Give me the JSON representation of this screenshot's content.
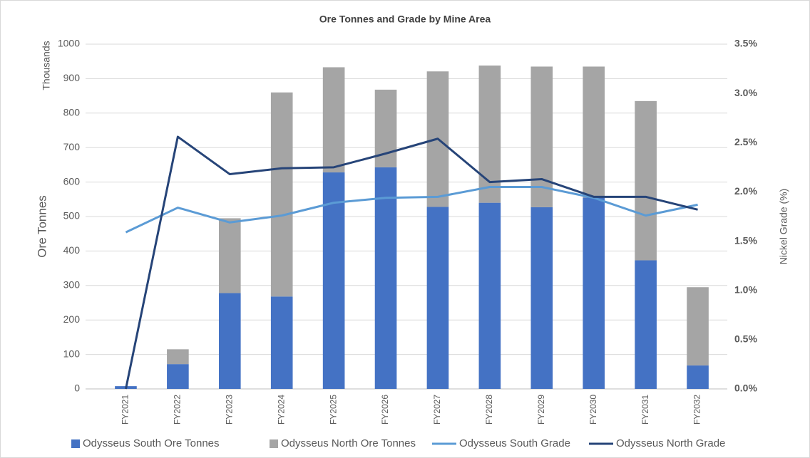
{
  "chart_data": {
    "type": "bar-line",
    "title": "Ore Tonnes and Grade by Mine Area",
    "y_unit": "Thousands",
    "y_label": "Ore Tonnes",
    "y2_label": "Nickel Grade (%)",
    "categories": [
      "FY2021",
      "FY2022",
      "FY2023",
      "FY2024",
      "FY2025",
      "FY2026",
      "FY2027",
      "FY2028",
      "FY2029",
      "FY2030",
      "FY2031",
      "FY2032"
    ],
    "series": [
      {
        "name": "Odysseus South Ore Tonnes",
        "kind": "bar",
        "color": "#4472c4",
        "values": [
          8,
          72,
          278,
          268,
          628,
          643,
          528,
          540,
          527,
          555,
          373,
          68
        ]
      },
      {
        "name": "Odysseus North Ore Tonnes",
        "kind": "bar",
        "color": "#a5a5a5",
        "values": [
          0,
          43,
          217,
          592,
          305,
          225,
          393,
          398,
          408,
          380,
          462,
          227
        ]
      },
      {
        "name": "Odysseus South Grade",
        "kind": "line",
        "axis": "y2",
        "color": "#5b9bd5",
        "values": [
          1.59,
          1.84,
          1.69,
          1.76,
          1.89,
          1.94,
          1.95,
          2.05,
          2.05,
          1.94,
          1.76,
          1.87
        ]
      },
      {
        "name": "Odysseus North Grade",
        "kind": "line",
        "axis": "y2",
        "color": "#264478",
        "values": [
          0,
          2.56,
          2.18,
          2.24,
          2.25,
          2.39,
          2.54,
          2.1,
          2.13,
          1.95,
          1.95,
          1.82
        ]
      }
    ],
    "stacked": true,
    "ylim": [
      0,
      1000
    ],
    "yticks": [
      0,
      100,
      200,
      300,
      400,
      500,
      600,
      700,
      800,
      900,
      1000
    ],
    "y2lim": [
      0,
      3.5
    ],
    "y2ticks": [
      {
        "value": 0,
        "label": "0.0%"
      },
      {
        "value": 0.5,
        "label": "0.5%"
      },
      {
        "value": 1,
        "label": "1.0%"
      },
      {
        "value": 1.5,
        "label": "1.5%"
      },
      {
        "value": 2,
        "label": "2.0%"
      },
      {
        "value": 2.5,
        "label": "2.5%"
      },
      {
        "value": 3,
        "label": "3.0%"
      },
      {
        "value": 3.5,
        "label": "3.5%"
      }
    ],
    "grid": true,
    "legend": "bottom"
  }
}
